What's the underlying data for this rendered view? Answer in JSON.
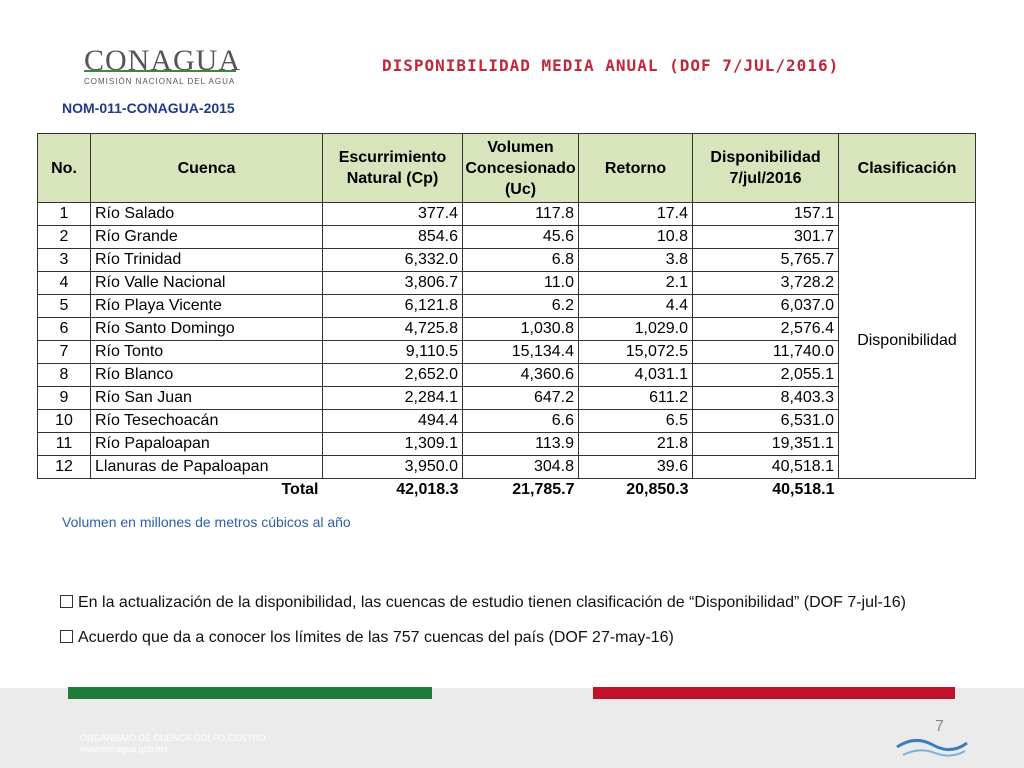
{
  "header": {
    "logo": "CONAGUA",
    "logo_sub": "COMISIÓN NACIONAL DEL AGUA",
    "title": "DISPONIBILIDAD MEDIA ANUAL (DOF 7/JUL/2016)",
    "subtitle": "NOM-011-CONAGUA-2015"
  },
  "table": {
    "columns": [
      "No.",
      "Cuenca",
      "Escurrimiento Natural (Cp)",
      "Volumen Concesionado (Uc)",
      "Retorno",
      "Disponibilidad 7/jul/2016",
      "Clasificación"
    ],
    "rows": [
      [
        "1",
        "Río Salado",
        "377.4",
        "117.8",
        "17.4",
        "157.1"
      ],
      [
        "2",
        "Río Grande",
        "854.6",
        "45.6",
        "10.8",
        "301.7"
      ],
      [
        "3",
        "Río Trinidad",
        "6,332.0",
        "6.8",
        "3.8",
        "5,765.7"
      ],
      [
        "4",
        "Río Valle Nacional",
        "3,806.7",
        "11.0",
        "2.1",
        "3,728.2"
      ],
      [
        "5",
        "Río Playa Vicente",
        "6,121.8",
        "6.2",
        "4.4",
        "6,037.0"
      ],
      [
        "6",
        "Río Santo Domingo",
        "4,725.8",
        "1,030.8",
        "1,029.0",
        "2,576.4"
      ],
      [
        "7",
        "Río Tonto",
        "9,110.5",
        "15,134.4",
        "15,072.5",
        "11,740.0"
      ],
      [
        "8",
        "Río Blanco",
        "2,652.0",
        "4,360.6",
        "4,031.1",
        "2,055.1"
      ],
      [
        "9",
        "Río San Juan",
        "2,284.1",
        "647.2",
        "611.2",
        "8,403.3"
      ],
      [
        "10",
        "Río Tesechoacán",
        "494.4",
        "6.6",
        "6.5",
        "6,531.0"
      ],
      [
        "11",
        "Río Papaloapan",
        "1,309.1",
        "113.9",
        "21.8",
        "19,351.1"
      ],
      [
        "12",
        "Llanuras de Papaloapan",
        "3,950.0",
        "304.8",
        "39.6",
        "40,518.1"
      ]
    ],
    "classification": "Disponibilidad",
    "total": {
      "label": "Total",
      "values": [
        "42,018.3",
        "21,785.7",
        "20,850.3",
        "40,518.1"
      ]
    }
  },
  "note": "Volumen en millones de metros cúbicos al año",
  "bullets": [
    "En la actualización de la disponibilidad, las cuencas de estudio tienen clasificación de “Disponibilidad” (DOF 7-jul-16)",
    "Acuerdo que da a conocer los límites de las 757 cuencas del país (DOF 27-may-16)"
  ],
  "footer": {
    "org": "ORGANISMO DE CUENCA GOLFO CENTRO",
    "url": "www.conagua.gob.mx",
    "page": "7"
  }
}
